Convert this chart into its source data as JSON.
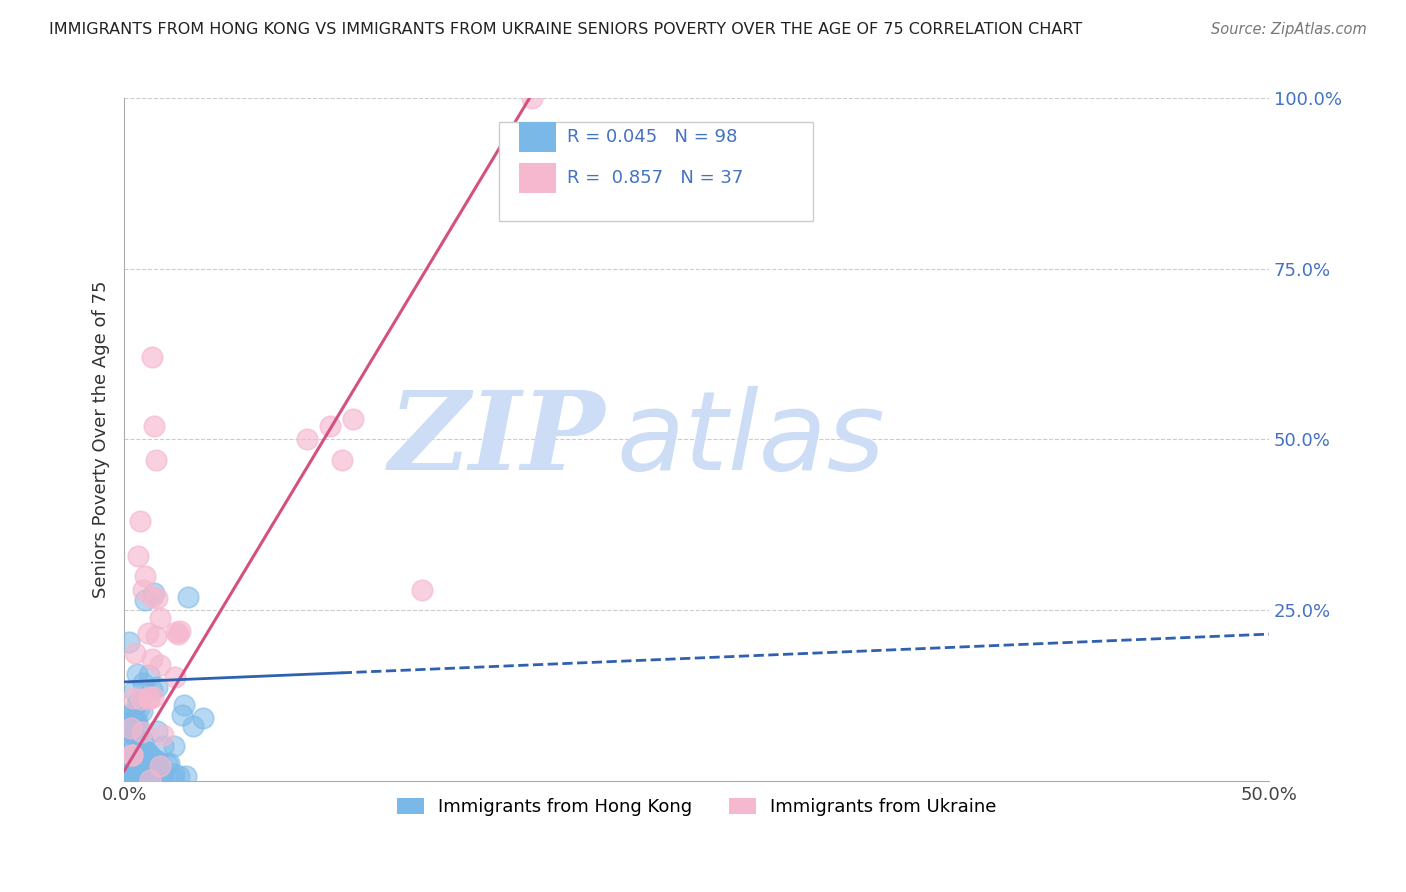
{
  "title": "IMMIGRANTS FROM HONG KONG VS IMMIGRANTS FROM UKRAINE SENIORS POVERTY OVER THE AGE OF 75 CORRELATION CHART",
  "source": "Source: ZipAtlas.com",
  "ylabel": "Seniors Poverty Over the Age of 75",
  "xlim": [
    0.0,
    0.5
  ],
  "ylim": [
    0.0,
    1.0
  ],
  "hk_R": 0.045,
  "hk_N": 98,
  "ua_R": 0.857,
  "ua_N": 37,
  "hk_color": "#7ab8e8",
  "ua_color": "#f5b8ce",
  "hk_line_color": "#3060b0",
  "ua_line_color": "#d45080",
  "watermark_zip": "ZIP",
  "watermark_atlas": "atlas",
  "watermark_color": "#ccddf5",
  "legend_hk_label": "Immigrants from Hong Kong",
  "legend_ua_label": "Immigrants from Ukraine",
  "background_color": "#ffffff",
  "grid_color": "#cccccc",
  "ua_line_x0": 0.0,
  "ua_line_y0": 0.015,
  "ua_line_x1": 0.178,
  "ua_line_y1": 1.005,
  "hk_line_x0": 0.0,
  "hk_line_y0": 0.145,
  "hk_line_x1_solid": 0.095,
  "hk_line_x1": 0.5,
  "hk_line_y1": 0.215
}
